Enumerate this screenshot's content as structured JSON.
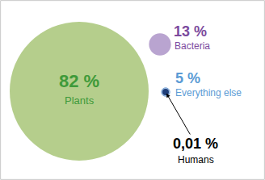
{
  "chart_data": {
    "type": "bubble",
    "categories": [
      "Plants",
      "Bacteria",
      "Everything else",
      "Humans"
    ],
    "values": [
      82,
      13,
      5,
      0.01
    ],
    "value_labels": [
      "82 %",
      "13 %",
      "5 %",
      "0,01 %"
    ],
    "colors": [
      "#b5ce8c",
      "#b9a4d0",
      "#a9c8ea",
      "#1f3f7a"
    ],
    "data_labels": true,
    "tick_labels": false
  }
}
